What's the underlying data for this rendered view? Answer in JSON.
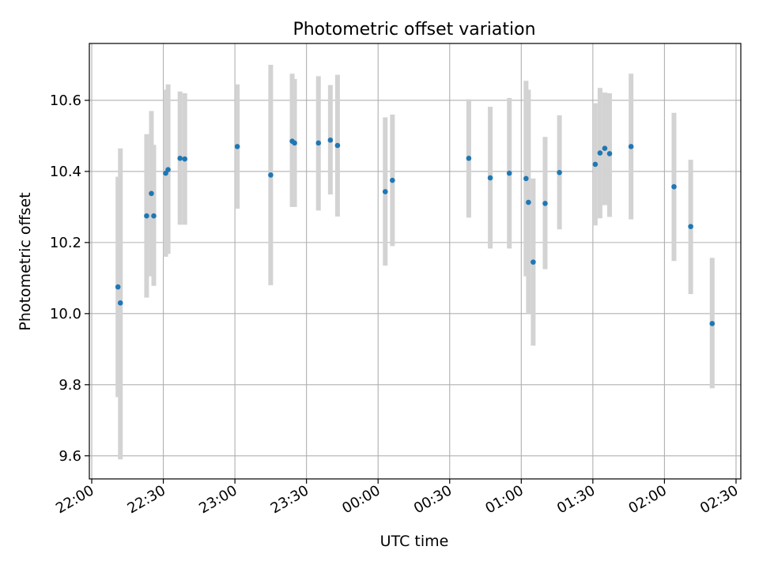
{
  "chart_data": {
    "type": "scatter",
    "title": "Photometric offset variation",
    "xlabel": "UTC time",
    "ylabel": "Photometric offset",
    "x_ticks": [
      "22:00",
      "22:30",
      "23:00",
      "23:30",
      "00:00",
      "00:30",
      "01:00",
      "01:30",
      "02:00",
      "02:30"
    ],
    "y_ticks": [
      "9.6",
      "9.8",
      "10.0",
      "10.2",
      "10.4",
      "10.6"
    ],
    "xlim": [
      "21:59",
      "02:32"
    ],
    "ylim": [
      9.535,
      10.76
    ],
    "grid": true,
    "marker_color": "#1f77b4",
    "errorbar_color": "#d3d3d3",
    "points": [
      {
        "time": "22:11",
        "y": 10.075,
        "lo": 9.765,
        "hi": 10.385
      },
      {
        "time": "22:12",
        "y": 10.03,
        "lo": 9.59,
        "hi": 10.465
      },
      {
        "time": "22:23",
        "y": 10.275,
        "lo": 10.045,
        "hi": 10.505
      },
      {
        "time": "22:25",
        "y": 10.338,
        "lo": 10.105,
        "hi": 10.57
      },
      {
        "time": "22:26",
        "y": 10.275,
        "lo": 10.078,
        "hi": 10.475
      },
      {
        "time": "22:31",
        "y": 10.395,
        "lo": 10.16,
        "hi": 10.63
      },
      {
        "time": "22:32",
        "y": 10.405,
        "lo": 10.168,
        "hi": 10.645
      },
      {
        "time": "22:37",
        "y": 10.437,
        "lo": 10.25,
        "hi": 10.625
      },
      {
        "time": "22:39",
        "y": 10.435,
        "lo": 10.25,
        "hi": 10.62
      },
      {
        "time": "23:01",
        "y": 10.47,
        "lo": 10.295,
        "hi": 10.645
      },
      {
        "time": "23:15",
        "y": 10.39,
        "lo": 10.08,
        "hi": 10.7
      },
      {
        "time": "23:24",
        "y": 10.485,
        "lo": 10.3,
        "hi": 10.675
      },
      {
        "time": "23:25",
        "y": 10.48,
        "lo": 10.3,
        "hi": 10.66
      },
      {
        "time": "23:35",
        "y": 10.48,
        "lo": 10.29,
        "hi": 10.668
      },
      {
        "time": "23:40",
        "y": 10.488,
        "lo": 10.335,
        "hi": 10.643
      },
      {
        "time": "23:43",
        "y": 10.473,
        "lo": 10.273,
        "hi": 10.672
      },
      {
        "time": "00:03",
        "y": 10.343,
        "lo": 10.135,
        "hi": 10.552
      },
      {
        "time": "00:06",
        "y": 10.375,
        "lo": 10.19,
        "hi": 10.56
      },
      {
        "time": "00:38",
        "y": 10.437,
        "lo": 10.27,
        "hi": 10.603
      },
      {
        "time": "00:47",
        "y": 10.382,
        "lo": 10.183,
        "hi": 10.582
      },
      {
        "time": "00:55",
        "y": 10.395,
        "lo": 10.183,
        "hi": 10.607
      },
      {
        "time": "01:02",
        "y": 10.38,
        "lo": 10.105,
        "hi": 10.655
      },
      {
        "time": "01:03",
        "y": 10.313,
        "lo": 10.0,
        "hi": 10.63
      },
      {
        "time": "01:05",
        "y": 10.145,
        "lo": 9.91,
        "hi": 10.38
      },
      {
        "time": "01:10",
        "y": 10.31,
        "lo": 10.125,
        "hi": 10.497
      },
      {
        "time": "01:16",
        "y": 10.397,
        "lo": 10.237,
        "hi": 10.558
      },
      {
        "time": "01:31",
        "y": 10.42,
        "lo": 10.248,
        "hi": 10.592
      },
      {
        "time": "01:33",
        "y": 10.452,
        "lo": 10.268,
        "hi": 10.635
      },
      {
        "time": "01:35",
        "y": 10.465,
        "lo": 10.305,
        "hi": 10.622
      },
      {
        "time": "01:37",
        "y": 10.45,
        "lo": 10.272,
        "hi": 10.62
      },
      {
        "time": "01:46",
        "y": 10.47,
        "lo": 10.265,
        "hi": 10.675
      },
      {
        "time": "02:04",
        "y": 10.357,
        "lo": 10.148,
        "hi": 10.565
      },
      {
        "time": "02:11",
        "y": 10.245,
        "lo": 10.055,
        "hi": 10.433
      },
      {
        "time": "02:20",
        "y": 9.972,
        "lo": 9.79,
        "hi": 10.157
      }
    ]
  }
}
